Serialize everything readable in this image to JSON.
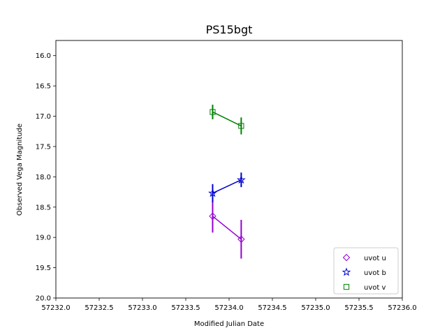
{
  "chart_data": {
    "type": "scatter",
    "title": "PS15bgt",
    "xlabel": "Modified Julian Date",
    "ylabel": "Observed Vega Magnitude",
    "xlim": [
      57232.0,
      57236.0
    ],
    "ylim": [
      20.0,
      15.75
    ],
    "y_inverted": true,
    "x_ticks": [
      "57232.0",
      "57232.5",
      "57233.0",
      "57233.5",
      "57234.0",
      "57234.5",
      "57235.0",
      "57235.5",
      "57236.0"
    ],
    "x_tick_values": [
      57232.0,
      57232.5,
      57233.0,
      57233.5,
      57234.0,
      57234.5,
      57235.0,
      57235.5,
      57236.0
    ],
    "y_ticks": [
      "16.0",
      "16.5",
      "17.0",
      "17.5",
      "18.0",
      "18.5",
      "19.0",
      "19.5",
      "20.0"
    ],
    "y_tick_values": [
      16.0,
      16.5,
      17.0,
      17.5,
      18.0,
      18.5,
      19.0,
      19.5,
      20.0
    ],
    "grid": false,
    "legend_position": "bottom-right",
    "series": [
      {
        "name": "uvot u",
        "marker": "diamond",
        "color": "#9400d3",
        "x": [
          57233.81,
          57234.14
        ],
        "y": [
          18.65,
          19.03
        ],
        "yerr": [
          0.27,
          0.32
        ]
      },
      {
        "name": "uvot b",
        "marker": "star",
        "color": "#0000cd",
        "x": [
          57233.81,
          57234.14
        ],
        "y": [
          18.27,
          18.05
        ],
        "yerr": [
          0.15,
          0.12
        ]
      },
      {
        "name": "uvot v",
        "marker": "square",
        "color": "#008000",
        "x": [
          57233.81,
          57234.14
        ],
        "y": [
          16.93,
          17.16
        ],
        "yerr": [
          0.12,
          0.14
        ]
      }
    ]
  }
}
